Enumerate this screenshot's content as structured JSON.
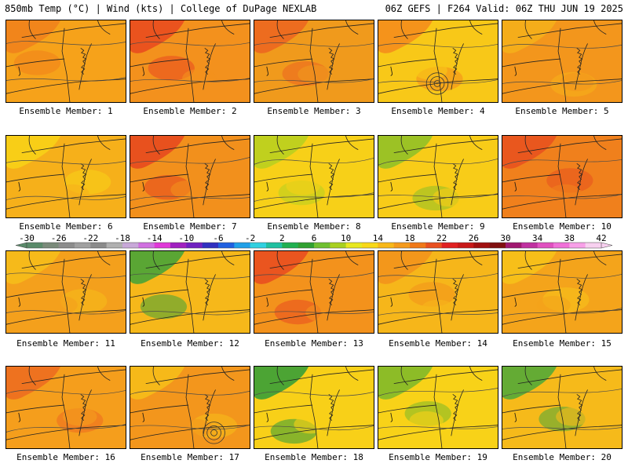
{
  "header": {
    "left": "850mb Temp (°C) | Wind (kts) | College of DuPage NEXLAB",
    "right": "06Z GEFS | F264 Valid: 06Z THU JUN 19 2025"
  },
  "members": [
    {
      "label": "Ensemble Member: 1",
      "base": "#f6a21a",
      "feature": "#f0801c",
      "lowcenter": false
    },
    {
      "label": "Ensemble Member: 2",
      "base": "#f3911d",
      "feature": "#e8481f",
      "lowcenter": false
    },
    {
      "label": "Ensemble Member: 3",
      "base": "#f09a1c",
      "feature": "#ec6420",
      "lowcenter": false
    },
    {
      "label": "Ensemble Member: 4",
      "base": "#f8c818",
      "feature": "#f48a1c",
      "lowcenter": true
    },
    {
      "label": "Ensemble Member: 5",
      "base": "#f3961c",
      "feature": "#f5b21a",
      "lowcenter": false
    },
    {
      "label": "Ensemble Member: 6",
      "base": "#f6b01a",
      "feature": "#f8d418",
      "lowcenter": false
    },
    {
      "label": "Ensemble Member: 7",
      "base": "#f2901c",
      "feature": "#e6461f",
      "lowcenter": false
    },
    {
      "label": "Ensemble Member: 8",
      "base": "#f7d018",
      "feature": "#b6d020",
      "lowcenter": false
    },
    {
      "label": "Ensemble Member: 9",
      "base": "#f8cc18",
      "feature": "#8cc028",
      "lowcenter": false
    },
    {
      "label": "Ensemble Member: 10",
      "base": "#f0801c",
      "feature": "#e8501f",
      "lowcenter": false
    },
    {
      "label": "Ensemble Member: 11",
      "base": "#f4a01c",
      "feature": "#f6be1a",
      "lowcenter": false
    },
    {
      "label": "Ensemble Member: 12",
      "base": "#f6b81a",
      "feature": "#3ea23a",
      "lowcenter": false
    },
    {
      "label": "Ensemble Member: 13",
      "base": "#f3921c",
      "feature": "#e84a20",
      "lowcenter": false
    },
    {
      "label": "Ensemble Member: 14",
      "base": "#f6b61a",
      "feature": "#f2921c",
      "lowcenter": false
    },
    {
      "label": "Ensemble Member: 15",
      "base": "#f4a41b",
      "feature": "#f7c419",
      "lowcenter": false
    },
    {
      "label": "Ensemble Member: 16",
      "base": "#f59e1c",
      "feature": "#ec6a20",
      "lowcenter": false
    },
    {
      "label": "Ensemble Member: 17",
      "base": "#f3961c",
      "feature": "#f6c019",
      "lowcenter": true
    },
    {
      "label": "Ensemble Member: 18",
      "base": "#f8d018",
      "feature": "#2e9c3a",
      "lowcenter": false
    },
    {
      "label": "Ensemble Member: 19",
      "base": "#f8d218",
      "feature": "#7ab82a",
      "lowcenter": false
    },
    {
      "label": "Ensemble Member: 20",
      "base": "#f6ba1a",
      "feature": "#4aa83a",
      "lowcenter": false
    }
  ],
  "colorbar": {
    "ticks": [
      "-30",
      "-26",
      "-22",
      "-18",
      "-14",
      "-10",
      "-6",
      "-2",
      "2",
      "6",
      "10",
      "14",
      "18",
      "22",
      "26",
      "30",
      "34",
      "38",
      "42"
    ],
    "colors": [
      "#5a8a6a",
      "#7a8a7a",
      "#8c8c8c",
      "#a0a0a0",
      "#8a8a8a",
      "#b0b0b0",
      "#c8a8d8",
      "#d070e0",
      "#e038d8",
      "#a020c0",
      "#7020c0",
      "#3030c0",
      "#2060e0",
      "#20a0e8",
      "#30d0e0",
      "#20c0a0",
      "#20b050",
      "#30a030",
      "#70c030",
      "#a8d020",
      "#e8e820",
      "#f8d818",
      "#f8b818",
      "#f49a1c",
      "#f07818",
      "#e85020",
      "#e02020",
      "#c81818",
      "#a01010",
      "#801010",
      "#a01870",
      "#c030a0",
      "#e050c0",
      "#f070d8",
      "#f8a0e8",
      "#f8d0f0"
    ]
  }
}
